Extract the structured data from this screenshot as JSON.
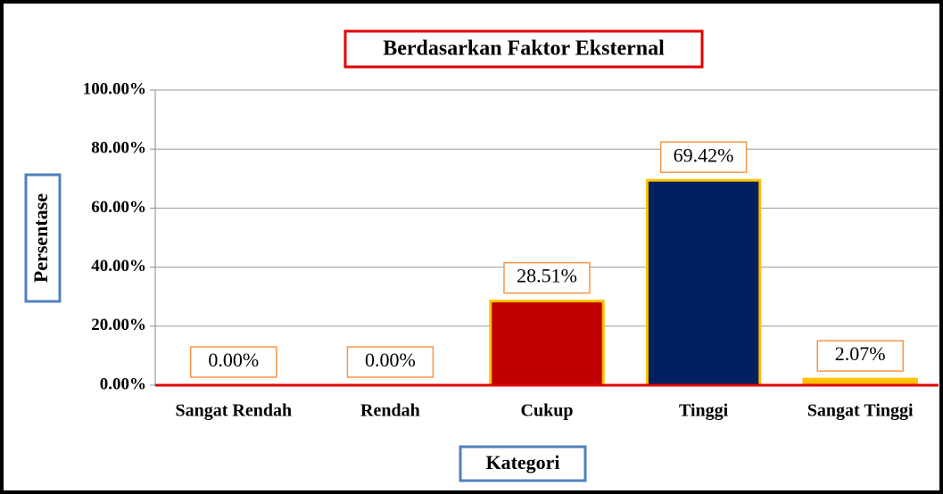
{
  "chart_data": {
    "type": "bar",
    "title": "Berdasarkan Faktor Eksternal",
    "x_label": "Kategori",
    "y_label": "Persentase",
    "categories": [
      "Sangat Rendah",
      "Rendah",
      "Cukup",
      "Tinggi",
      "Sangat Tinggi"
    ],
    "values": [
      0,
      0,
      28.51,
      69.42,
      2.07
    ],
    "value_labels": [
      "0.00%",
      "0.00%",
      "28.51%",
      "69.42%",
      "2.07%"
    ],
    "colors": [
      "#c00000",
      "#c00000",
      "#c00000",
      "#002060",
      "#ffc000"
    ],
    "ylim": [
      0,
      100
    ],
    "yticks": [
      {
        "value": 0,
        "label": "0.00%"
      },
      {
        "value": 20,
        "label": "20.00%"
      },
      {
        "value": 40,
        "label": "40.00%"
      },
      {
        "value": 60,
        "label": "60.00%"
      },
      {
        "value": 80,
        "label": "80.00%"
      },
      {
        "value": 100,
        "label": "100.00%"
      }
    ],
    "grid": true
  }
}
